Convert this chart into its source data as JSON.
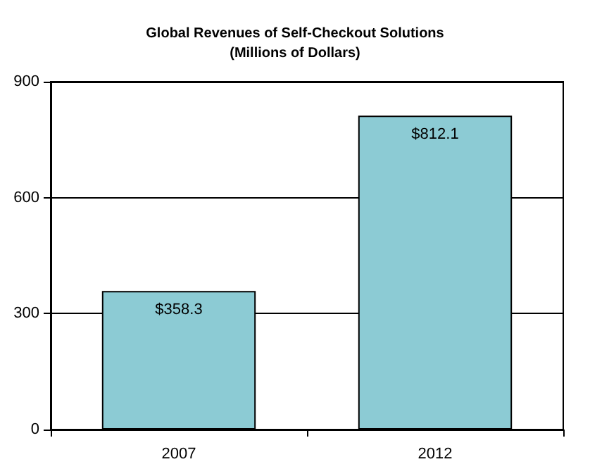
{
  "chart_data": {
    "type": "bar",
    "title": "Global Revenues of Self-Checkout Solutions",
    "subtitle": "(Millions of Dollars)",
    "categories": [
      "2007",
      "2012"
    ],
    "values": [
      358.3,
      812.1
    ],
    "value_labels": [
      "$358.3",
      "$812.1"
    ],
    "color": "#8ccbd4",
    "ylim": [
      0,
      900
    ],
    "yticks": [
      0,
      300,
      600,
      900
    ],
    "grid": "y"
  }
}
